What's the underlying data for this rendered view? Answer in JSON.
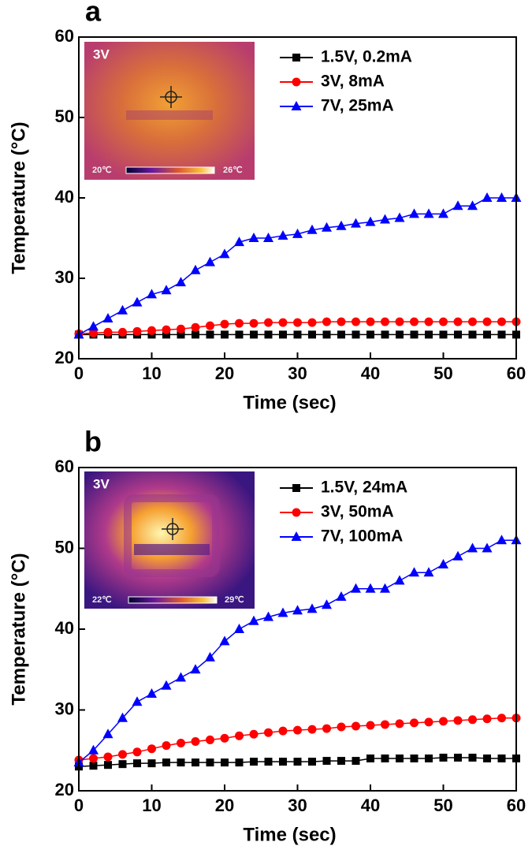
{
  "chart_data": [
    {
      "type": "line",
      "panel_label": "a",
      "x_label": "Time (sec)",
      "y_label": "Temperature (°C)",
      "x": [
        0,
        2,
        4,
        6,
        8,
        10,
        12,
        14,
        16,
        18,
        20,
        22,
        24,
        26,
        28,
        30,
        32,
        34,
        36,
        38,
        40,
        42,
        44,
        46,
        48,
        50,
        52,
        54,
        56,
        58,
        60
      ],
      "xlim": [
        0,
        60
      ],
      "xticks": [
        0,
        10,
        20,
        30,
        40,
        50,
        60
      ],
      "ylim": [
        20,
        60
      ],
      "yticks": [
        20,
        30,
        40,
        50,
        60
      ],
      "legend": "upper right",
      "inset": {
        "label": "3V",
        "scale_min": "20℃",
        "scale_max": "26℃"
      },
      "series": [
        {
          "name": "1.5V, 0.2mA",
          "color": "#000000",
          "marker": "square",
          "values": [
            23,
            23,
            23,
            23,
            23,
            23,
            23,
            23,
            23,
            23,
            23,
            23,
            23,
            23,
            23,
            23,
            23,
            23,
            23,
            23,
            23,
            23,
            23,
            23,
            23,
            23,
            23,
            23,
            23,
            23,
            23
          ]
        },
        {
          "name": "3V, 8mA",
          "color": "#ff0000",
          "marker": "circle",
          "values": [
            23.1,
            23.2,
            23.3,
            23.3,
            23.4,
            23.5,
            23.6,
            23.7,
            23.9,
            24.1,
            24.3,
            24.4,
            24.4,
            24.5,
            24.5,
            24.5,
            24.5,
            24.6,
            24.6,
            24.6,
            24.6,
            24.6,
            24.6,
            24.6,
            24.6,
            24.6,
            24.6,
            24.6,
            24.6,
            24.6,
            24.6
          ]
        },
        {
          "name": "7V, 25mA",
          "color": "#0000ff",
          "marker": "triangle",
          "values": [
            23,
            24,
            25,
            26,
            27,
            28,
            28.5,
            29.5,
            31,
            32,
            33,
            34.5,
            35,
            35,
            35.3,
            35.5,
            36,
            36.3,
            36.5,
            36.8,
            37,
            37.3,
            37.5,
            38,
            38,
            38,
            39,
            39,
            40,
            40,
            40
          ]
        }
      ]
    },
    {
      "type": "line",
      "panel_label": "b",
      "x_label": "Time (sec)",
      "y_label": "Temperature (°C)",
      "x": [
        0,
        2,
        4,
        6,
        8,
        10,
        12,
        14,
        16,
        18,
        20,
        22,
        24,
        26,
        28,
        30,
        32,
        34,
        36,
        38,
        40,
        42,
        44,
        46,
        48,
        50,
        52,
        54,
        56,
        58,
        60
      ],
      "xlim": [
        0,
        60
      ],
      "xticks": [
        0,
        10,
        20,
        30,
        40,
        50,
        60
      ],
      "ylim": [
        20,
        60
      ],
      "yticks": [
        20,
        30,
        40,
        50,
        60
      ],
      "legend": "upper right",
      "inset": {
        "label": "3V",
        "scale_min": "22℃",
        "scale_max": "29℃"
      },
      "series": [
        {
          "name": "1.5V, 24mA",
          "color": "#000000",
          "marker": "square",
          "values": [
            23,
            23.1,
            23.2,
            23.3,
            23.4,
            23.4,
            23.5,
            23.5,
            23.5,
            23.5,
            23.5,
            23.5,
            23.6,
            23.6,
            23.6,
            23.6,
            23.6,
            23.7,
            23.7,
            23.7,
            24,
            24,
            24,
            24,
            24,
            24.1,
            24.1,
            24.1,
            24,
            24,
            24
          ]
        },
        {
          "name": "3V, 50mA",
          "color": "#ff0000",
          "marker": "circle",
          "values": [
            23.8,
            24,
            24.2,
            24.5,
            24.8,
            25.2,
            25.6,
            25.9,
            26.1,
            26.3,
            26.5,
            26.8,
            27,
            27.2,
            27.4,
            27.5,
            27.6,
            27.7,
            27.9,
            28,
            28.1,
            28.2,
            28.3,
            28.4,
            28.5,
            28.6,
            28.7,
            28.8,
            28.9,
            29,
            29
          ]
        },
        {
          "name": "7V, 100mA",
          "color": "#0000ff",
          "marker": "triangle",
          "values": [
            23.5,
            25,
            27,
            29,
            31,
            32,
            33,
            34,
            35,
            36.5,
            38.5,
            40,
            41,
            41.5,
            42,
            42.3,
            42.5,
            43,
            44,
            45,
            45,
            45,
            46,
            47,
            47,
            48,
            49,
            50,
            50,
            51,
            51
          ]
        }
      ]
    }
  ]
}
